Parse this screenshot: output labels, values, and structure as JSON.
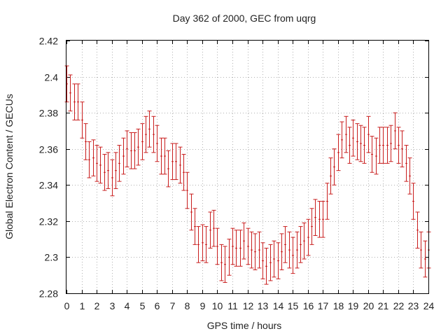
{
  "chart_data": {
    "type": "scatter",
    "title": "Day 362 of 2000, GEC from uqrg",
    "xlabel": "GPS time / hours",
    "ylabel": "Global Electron Content / GECUs",
    "xlim": [
      0,
      24
    ],
    "ylim": [
      2.28,
      2.42
    ],
    "xticks": [
      "0",
      "1",
      "2",
      "3",
      "4",
      "5",
      "6",
      "7",
      "8",
      "9",
      "10",
      "11",
      "12",
      "13",
      "14",
      "15",
      "16",
      "17",
      "18",
      "19",
      "20",
      "21",
      "22",
      "23",
      "24"
    ],
    "yticks": [
      "2.28",
      "2.3",
      "2.32",
      "2.34",
      "2.36",
      "2.38",
      "2.4",
      "2.42"
    ],
    "grid": true,
    "error_bar_half_width": 0.01,
    "color": "#c81d1d",
    "series": [
      {
        "x": [
          0,
          0.25,
          0.5,
          0.75,
          1,
          1.25,
          1.5,
          1.75,
          2,
          2.25,
          2.5,
          2.75,
          3,
          3.25,
          3.5,
          3.75,
          4,
          4.25,
          4.5,
          4.75,
          5,
          5.25,
          5.5,
          5.75,
          6,
          6.25,
          6.5,
          6.75,
          7,
          7.25,
          7.5,
          7.75,
          8,
          8.25,
          8.5,
          8.75,
          9,
          9.25,
          9.5,
          9.75,
          10,
          10.25,
          10.5,
          10.75,
          11,
          11.25,
          11.5,
          11.75,
          12,
          12.25,
          12.5,
          12.75,
          13,
          13.25,
          13.5,
          13.75,
          14,
          14.25,
          14.5,
          14.75,
          15,
          15.25,
          15.5,
          15.75,
          16,
          16.25,
          16.5,
          16.75,
          17,
          17.25,
          17.5,
          17.75,
          18,
          18.25,
          18.5,
          18.75,
          19,
          19.25,
          19.5,
          19.75,
          20,
          20.25,
          20.5,
          20.75,
          21,
          21.25,
          21.5,
          21.75,
          22,
          22.25,
          22.5,
          22.75,
          23,
          23.25,
          23.5,
          23.75,
          24
        ],
        "y": [
          2.396,
          2.391,
          2.386,
          2.386,
          2.376,
          2.364,
          2.354,
          2.355,
          2.352,
          2.351,
          2.347,
          2.348,
          2.344,
          2.348,
          2.352,
          2.356,
          2.36,
          2.359,
          2.359,
          2.361,
          2.364,
          2.368,
          2.371,
          2.368,
          2.363,
          2.356,
          2.356,
          2.349,
          2.353,
          2.353,
          2.351,
          2.347,
          2.337,
          2.325,
          2.317,
          2.307,
          2.308,
          2.307,
          2.315,
          2.316,
          2.306,
          2.297,
          2.296,
          2.3,
          2.306,
          2.305,
          2.305,
          2.309,
          2.306,
          2.304,
          2.303,
          2.304,
          2.298,
          2.295,
          2.297,
          2.299,
          2.298,
          2.303,
          2.307,
          2.304,
          2.301,
          2.304,
          2.307,
          2.309,
          2.311,
          2.317,
          2.322,
          2.321,
          2.321,
          2.331,
          2.345,
          2.35,
          2.358,
          2.365,
          2.368,
          2.362,
          2.366,
          2.364,
          2.363,
          2.362,
          2.368,
          2.357,
          2.356,
          2.362,
          2.362,
          2.362,
          2.363,
          2.37,
          2.362,
          2.36,
          2.352,
          2.345,
          2.331,
          2.315,
          2.304,
          2.299,
          2.304
        ]
      }
    ]
  }
}
